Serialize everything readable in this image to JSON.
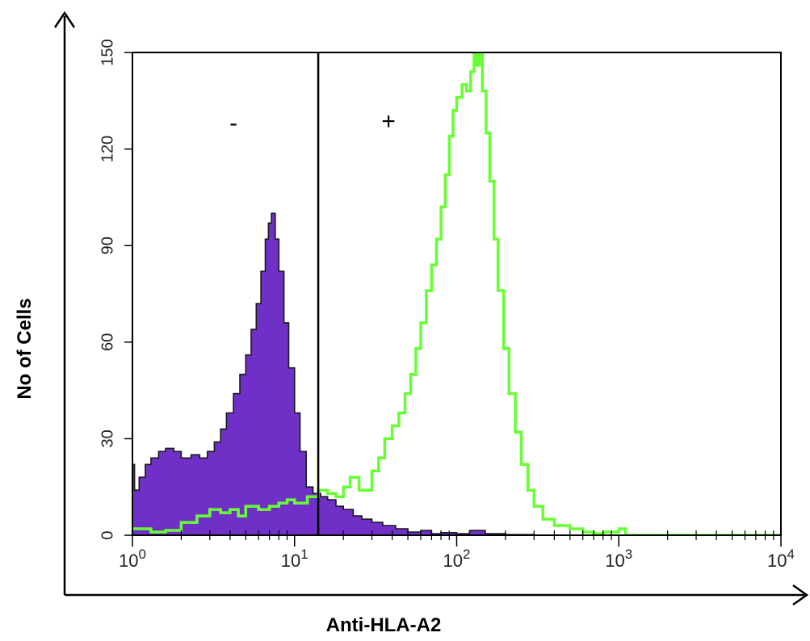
{
  "chart_data": {
    "type": "histogram",
    "xlabel": "Anti-HLA-A2",
    "ylabel": "No of Cells",
    "x_scale": "log",
    "xlim": [
      1,
      10000
    ],
    "ylim": [
      0,
      150
    ],
    "x_ticks": [
      {
        "value": 1,
        "base": "10",
        "exp": "0"
      },
      {
        "value": 10,
        "base": "10",
        "exp": "1"
      },
      {
        "value": 100,
        "base": "10",
        "exp": "2"
      },
      {
        "value": 1000,
        "base": "10",
        "exp": "3"
      },
      {
        "value": 10000,
        "base": "10",
        "exp": "4"
      }
    ],
    "y_ticks": [
      "0",
      "30",
      "60",
      "90",
      "120",
      "150"
    ],
    "gate": {
      "x": 14,
      "negative_label": "-",
      "positive_label": "+"
    },
    "colors": {
      "filled": "#7030c8",
      "outline": "#66ff33",
      "frame": "#000000"
    },
    "series": [
      {
        "style": "filled",
        "points": [
          [
            1.0,
            22
          ],
          [
            1.03,
            14
          ],
          [
            1.1,
            18
          ],
          [
            1.2,
            22
          ],
          [
            1.3,
            24
          ],
          [
            1.45,
            26
          ],
          [
            1.6,
            27
          ],
          [
            1.8,
            26
          ],
          [
            2.0,
            24
          ],
          [
            2.3,
            25
          ],
          [
            2.6,
            24
          ],
          [
            2.9,
            26
          ],
          [
            3.2,
            29
          ],
          [
            3.5,
            33
          ],
          [
            3.8,
            38
          ],
          [
            4.2,
            44
          ],
          [
            4.6,
            50
          ],
          [
            5.0,
            56
          ],
          [
            5.4,
            64
          ],
          [
            5.8,
            72
          ],
          [
            6.2,
            82
          ],
          [
            6.6,
            92
          ],
          [
            6.9,
            97
          ],
          [
            7.2,
            100
          ],
          [
            7.6,
            92
          ],
          [
            8.0,
            82
          ],
          [
            8.6,
            66
          ],
          [
            9.2,
            52
          ],
          [
            10.0,
            38
          ],
          [
            10.8,
            26
          ],
          [
            11.8,
            15
          ],
          [
            13.0,
            13
          ],
          [
            14.5,
            12
          ],
          [
            16,
            11
          ],
          [
            18,
            9
          ],
          [
            20,
            8
          ],
          [
            23,
            6
          ],
          [
            26,
            5
          ],
          [
            30,
            4
          ],
          [
            35,
            3
          ],
          [
            42,
            2
          ],
          [
            50,
            1
          ],
          [
            60,
            1.5
          ],
          [
            70,
            0.5
          ],
          [
            80,
            0.8
          ],
          [
            100,
            0.5
          ],
          [
            120,
            1.5
          ],
          [
            150,
            0.5
          ],
          [
            200,
            0.2
          ],
          [
            300,
            0
          ],
          [
            10000,
            0
          ]
        ]
      },
      {
        "style": "outline",
        "points": [
          [
            1.0,
            2
          ],
          [
            1.3,
            1
          ],
          [
            1.6,
            1.5
          ],
          [
            2.0,
            4
          ],
          [
            2.5,
            6
          ],
          [
            3.0,
            8
          ],
          [
            3.5,
            7
          ],
          [
            4.0,
            8
          ],
          [
            4.5,
            6
          ],
          [
            5.0,
            9
          ],
          [
            6.0,
            8
          ],
          [
            7.0,
            9
          ],
          [
            8.0,
            10
          ],
          [
            9.0,
            11
          ],
          [
            10,
            10
          ],
          [
            12,
            12
          ],
          [
            14,
            14
          ],
          [
            16,
            13
          ],
          [
            18,
            12
          ],
          [
            20,
            15
          ],
          [
            22,
            18
          ],
          [
            25,
            14
          ],
          [
            28,
            14
          ],
          [
            30,
            20
          ],
          [
            33,
            24
          ],
          [
            36,
            30
          ],
          [
            40,
            34
          ],
          [
            44,
            38
          ],
          [
            48,
            44
          ],
          [
            52,
            50
          ],
          [
            56,
            58
          ],
          [
            60,
            66
          ],
          [
            65,
            76
          ],
          [
            70,
            84
          ],
          [
            75,
            92
          ],
          [
            80,
            102
          ],
          [
            85,
            112
          ],
          [
            90,
            124
          ],
          [
            95,
            132
          ],
          [
            100,
            136
          ],
          [
            108,
            140
          ],
          [
            115,
            138
          ],
          [
            122,
            144
          ],
          [
            128,
            150
          ],
          [
            133,
            146
          ],
          [
            138,
            152
          ],
          [
            144,
            138
          ],
          [
            152,
            125
          ],
          [
            160,
            110
          ],
          [
            170,
            92
          ],
          [
            180,
            76
          ],
          [
            195,
            58
          ],
          [
            210,
            44
          ],
          [
            230,
            32
          ],
          [
            250,
            22
          ],
          [
            275,
            14
          ],
          [
            300,
            9
          ],
          [
            340,
            5
          ],
          [
            400,
            3
          ],
          [
            500,
            2
          ],
          [
            600,
            1
          ],
          [
            700,
            0.5
          ],
          [
            800,
            1
          ],
          [
            1000,
            2
          ],
          [
            1100,
            0
          ],
          [
            10000,
            0
          ]
        ]
      }
    ]
  }
}
